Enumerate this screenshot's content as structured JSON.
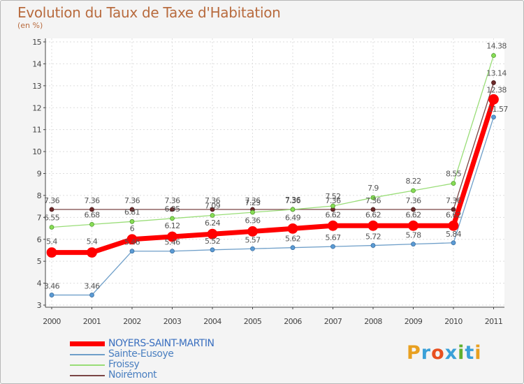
{
  "chart_data": {
    "type": "line",
    "title": "Evolution du Taux de Taxe d'Habitation",
    "subtitle": "(en %)",
    "xlabel": "",
    "ylabel": "",
    "ylim": [
      3,
      15
    ],
    "yticks": [
      3,
      4,
      5,
      6,
      7,
      8,
      9,
      10,
      11,
      12,
      13,
      14,
      15
    ],
    "x": [
      "2000",
      "2001",
      "2002",
      "2003",
      "2004",
      "2005",
      "2006",
      "2007",
      "2008",
      "2009",
      "2010",
      "2011"
    ],
    "legend_position": "bottom-left",
    "series": [
      {
        "name": "NOYERS-SAINT-MARTIN",
        "color": "#ff0000",
        "values": [
          5.4,
          5.4,
          6,
          6.12,
          6.24,
          6.36,
          6.49,
          6.62,
          6.62,
          6.62,
          6.62,
          12.38
        ],
        "labels": [
          "5.4",
          "5.4",
          "6",
          "6.12",
          "6.24",
          "6.36",
          "6.49",
          "6.62",
          "6.62",
          "6.62",
          "6.62",
          "12.38"
        ]
      },
      {
        "name": "Sainte-Eusoye",
        "color": "#6f9fc9",
        "values": [
          3.46,
          3.46,
          5.46,
          5.46,
          5.52,
          5.57,
          5.62,
          5.67,
          5.72,
          5.78,
          5.84,
          11.57
        ],
        "labels": [
          "3.46",
          "3.46",
          "5.46",
          "5.46",
          "5.52",
          "5.57",
          "5.62",
          "5.67",
          "5.72",
          "5.78",
          "5.84",
          "11.57"
        ]
      },
      {
        "name": "Froissy",
        "color": "#99dd77",
        "values": [
          6.55,
          6.68,
          6.81,
          6.95,
          7.09,
          7.23,
          7.36,
          7.52,
          7.9,
          8.22,
          8.55,
          14.38
        ],
        "labels": [
          "6.55",
          "6.68",
          "6.81",
          "6.95",
          "7.09",
          "7.23",
          "7.36",
          "7.52",
          "7.9",
          "8.22",
          "8.55",
          "14.38"
        ]
      },
      {
        "name": "Noirémont",
        "color": "#7a4545",
        "values": [
          7.36,
          7.36,
          7.36,
          7.36,
          7.36,
          7.36,
          7.36,
          7.36,
          7.36,
          7.36,
          7.36,
          13.14
        ],
        "labels": [
          "7.36",
          "7.36",
          "7.36",
          "7.36",
          "7.36",
          "7.36",
          "7.36",
          "7.36",
          "7.36",
          "7.36",
          "7.36",
          "13.14"
        ]
      }
    ]
  },
  "branding": {
    "logo_text": "Proxiti",
    "logo_colors": [
      "#e8a020",
      "#3aa0d8",
      "#e85020",
      "#3aa0d8",
      "#60b030",
      "#3aa0d8",
      "#e8a020"
    ]
  }
}
